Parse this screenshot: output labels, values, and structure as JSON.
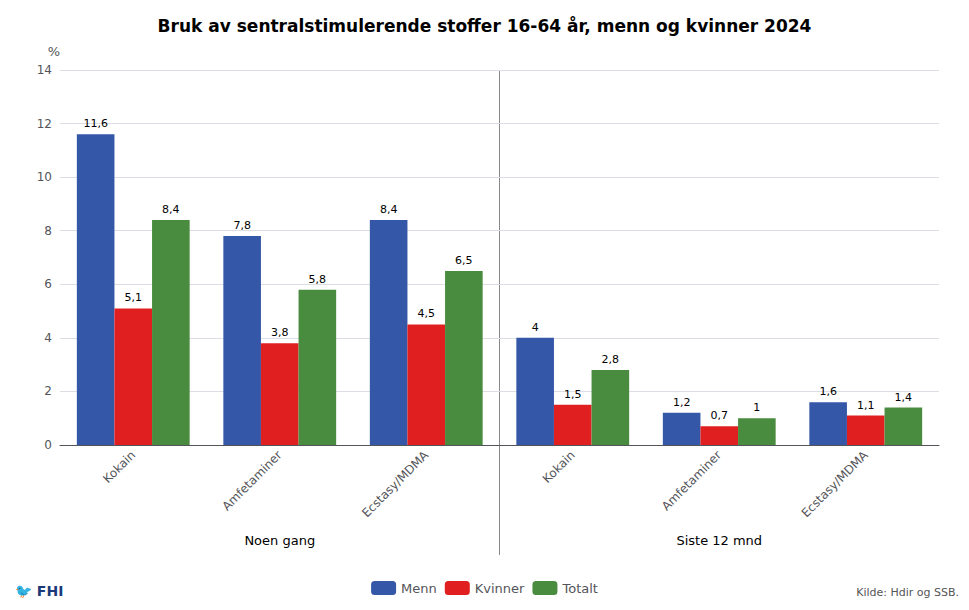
{
  "chart_data": {
    "type": "bar",
    "title": "Bruk av sentralstimulerende stoffer 16-64 år, menn og kvinner 2024",
    "ylabel": "%",
    "x_groups": [
      {
        "label": "Noen gang",
        "categories": [
          "Kokain",
          "Amfetaminer",
          "Ecstasy/MDMA"
        ]
      },
      {
        "label": "Siste 12 mnd",
        "categories": [
          "Kokain",
          "Amfetaminer",
          "Ecstasy/MDMA"
        ]
      }
    ],
    "series": [
      {
        "name": "Menn",
        "color": "#3457a8",
        "values": [
          11.6,
          7.8,
          8.4,
          4.0,
          1.2,
          1.6
        ],
        "value_labels": [
          "11,6",
          "7,8",
          "8,4",
          "4",
          "1,2",
          "1,6"
        ]
      },
      {
        "name": "Kvinner",
        "color": "#e02020",
        "values": [
          5.1,
          3.8,
          4.5,
          1.5,
          0.7,
          1.1
        ],
        "value_labels": [
          "5,1",
          "3,8",
          "4,5",
          "1,5",
          "0,7",
          "1,1"
        ]
      },
      {
        "name": "Totalt",
        "color": "#4a8c3f",
        "values": [
          8.4,
          5.8,
          6.5,
          2.8,
          1.0,
          1.4
        ],
        "value_labels": [
          "8,4",
          "5,8",
          "6,5",
          "2,8",
          "1",
          "1,4"
        ]
      }
    ],
    "ylim": [
      0,
      14
    ],
    "yticks": [
      0,
      2,
      4,
      6,
      8,
      10,
      12,
      14
    ],
    "grid": true,
    "legend": "bottom",
    "data_labels": true,
    "source": "Kilde: Hdir og SSB.",
    "annotations": [
      "🐦 FHI"
    ]
  }
}
